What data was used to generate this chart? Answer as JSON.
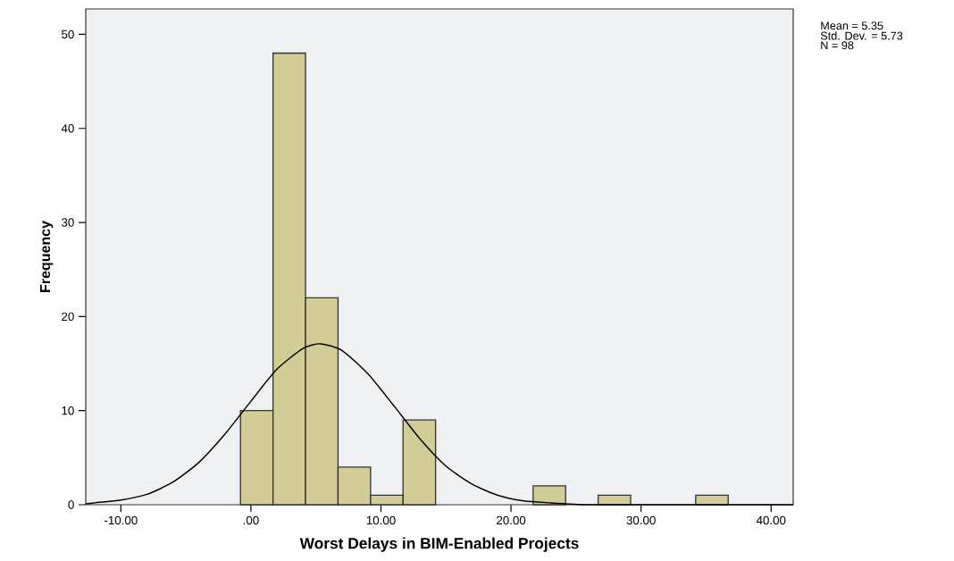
{
  "chart_data": {
    "type": "histogram",
    "xlabel": "Worst Delays in BIM-Enabled Projects",
    "ylabel": "Frequency",
    "series": [
      {
        "type": "histogram",
        "color": "#d2cd96",
        "bins": [
          -0.8,
          1.7,
          4.2,
          6.7,
          9.2,
          11.7,
          14.2,
          16.7,
          19.2,
          21.7,
          24.2,
          26.7,
          29.2,
          31.7,
          34.2,
          36.7
        ],
        "values": [
          10,
          48,
          22,
          4,
          1,
          9,
          0,
          0,
          0,
          2,
          0,
          1,
          0,
          0,
          1
        ]
      },
      {
        "type": "line",
        "color": "#000000",
        "x": [
          -12.7,
          -12,
          -10,
          -8,
          -6,
          -4,
          -2,
          0,
          2,
          4,
          5.35,
          7,
          9,
          11,
          13,
          15,
          17,
          19,
          21,
          23,
          26,
          30,
          35,
          41.7
        ],
        "values": [
          0.1,
          0.2,
          0.5,
          1.1,
          2.4,
          4.5,
          7.5,
          11.0,
          14.4,
          16.6,
          17.1,
          16.4,
          13.9,
          10.5,
          7.0,
          4.1,
          2.2,
          1.0,
          0.4,
          0.2,
          0,
          0,
          0,
          0
        ]
      }
    ],
    "xlim": [
      -12.7,
      41.7
    ],
    "ylim": [
      0,
      52.7
    ],
    "xticks": [
      {
        "value": -10,
        "label": "-10.00"
      },
      {
        "value": 0,
        "label": ".00"
      },
      {
        "value": 10,
        "label": "10.00"
      },
      {
        "value": 20,
        "label": "20.00"
      },
      {
        "value": 30,
        "label": "30.00"
      },
      {
        "value": 40,
        "label": "40.00"
      }
    ],
    "yticks": [
      0,
      10,
      20,
      30,
      40,
      50
    ],
    "annotations": [
      "Mean = 5.35",
      "Std. Dev. = 5.73",
      "N = 98"
    ]
  }
}
